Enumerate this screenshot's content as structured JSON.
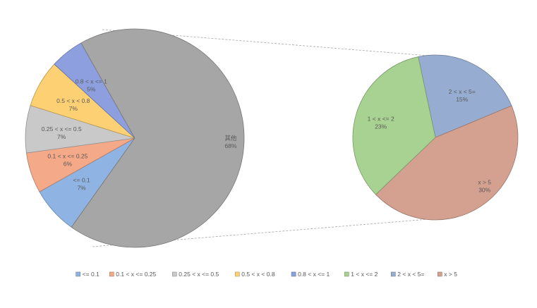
{
  "chart_data": {
    "type": "pie-of-pie",
    "primary_pie": {
      "slices": [
        {
          "name": "<= 0.1",
          "label": "<= 0.1",
          "percent_label": "7%",
          "value": 7,
          "color": "#8fb4e3"
        },
        {
          "name": "0.1 < x <= 0.25",
          "label": "0.1 < x <= 0.25",
          "percent_label": "6%",
          "value": 6,
          "color": "#f4a988"
        },
        {
          "name": "0.25 < x <= 0.5",
          "label": "0.25 < x <= 0.5",
          "percent_label": "7%",
          "value": 7,
          "color": "#c9c9c9"
        },
        {
          "name": "0.5 < x < 0.8",
          "label": "0.5 < x < 0.8",
          "percent_label": "7%",
          "value": 7,
          "color": "#fdd173"
        },
        {
          "name": "0.8 < x <= 1",
          "label": "0.8 < x <= 1",
          "percent_label": "5%",
          "value": 5,
          "color": "#8d9fde"
        },
        {
          "name": "其他",
          "label": "其他",
          "percent_label": "68%",
          "value": 68,
          "color": "#a6a6a6"
        }
      ]
    },
    "secondary_pie": {
      "slices": [
        {
          "name": "2 < x < 5=",
          "label": "2 < x < 5=",
          "percent_label": "15%",
          "value": 15,
          "color": "#97acd1"
        },
        {
          "name": "x > 5",
          "label": "x > 5",
          "percent_label": "30%",
          "value": 30,
          "color": "#d4a191"
        },
        {
          "name": "1 < x <= 2",
          "label": "1 < x <= 2",
          "percent_label": "23%",
          "value": 23,
          "color": "#a8d291"
        }
      ]
    },
    "legend": [
      {
        "label": "<= 0.1",
        "color": "#8fb4e3"
      },
      {
        "label": "0.1 < x <= 0.25",
        "color": "#f4a988"
      },
      {
        "label": "0.25 < x <= 0.5",
        "color": "#c9c9c9"
      },
      {
        "label": "0.5 < x < 0.8",
        "color": "#fdd173"
      },
      {
        "label": "0.8 < x <= 1",
        "color": "#8d9fde"
      },
      {
        "label": "1 < x <= 2",
        "color": "#a8d291"
      },
      {
        "label": "2 < x < 5=",
        "color": "#97acd1"
      },
      {
        "label": "x > 5",
        "color": "#d4a191"
      }
    ],
    "legend_position": "bottom"
  }
}
